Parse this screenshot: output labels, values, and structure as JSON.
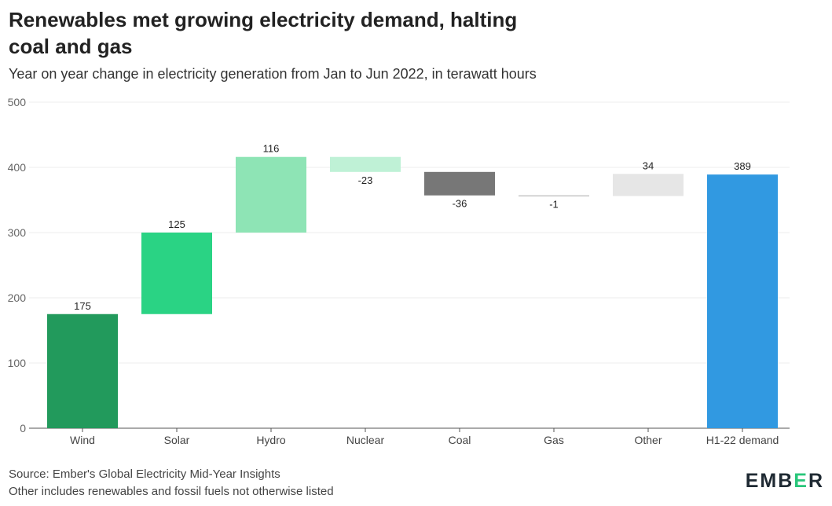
{
  "title": "Renewables met growing electricity demand, halting coal and gas",
  "subtitle": "Year on year change in electricity generation from Jan to Jun 2022, in terawatt hours",
  "source": "Source: Ember's Global Electricity Mid-Year Insights",
  "note": "Other includes renewables and fossil fuels not otherwise listed",
  "logo": {
    "prefix": "EMB",
    "mid": "E",
    "suffix": "R"
  },
  "chart_data": {
    "type": "bar",
    "subtype": "waterfall",
    "categories": [
      "Wind",
      "Solar",
      "Hydro",
      "Nuclear",
      "Coal",
      "Gas",
      "Other",
      "H1-22 demand"
    ],
    "values": [
      175,
      125,
      116,
      -23,
      -36,
      -1,
      34,
      389
    ],
    "labels": [
      "175",
      "125",
      "116",
      "-23",
      "-36",
      "-1",
      "34",
      "389"
    ],
    "total_index": 7,
    "colors": [
      "#229a5c",
      "#2ad384",
      "#8ee4b5",
      "#bff1d6",
      "#777777",
      "#aaaaaa",
      "#e6e6e6",
      "#3199e1"
    ],
    "ylim": [
      0,
      500
    ],
    "yticks": [
      0,
      100,
      200,
      300,
      400,
      500
    ],
    "grid": true,
    "xlabel": "",
    "ylabel": ""
  }
}
